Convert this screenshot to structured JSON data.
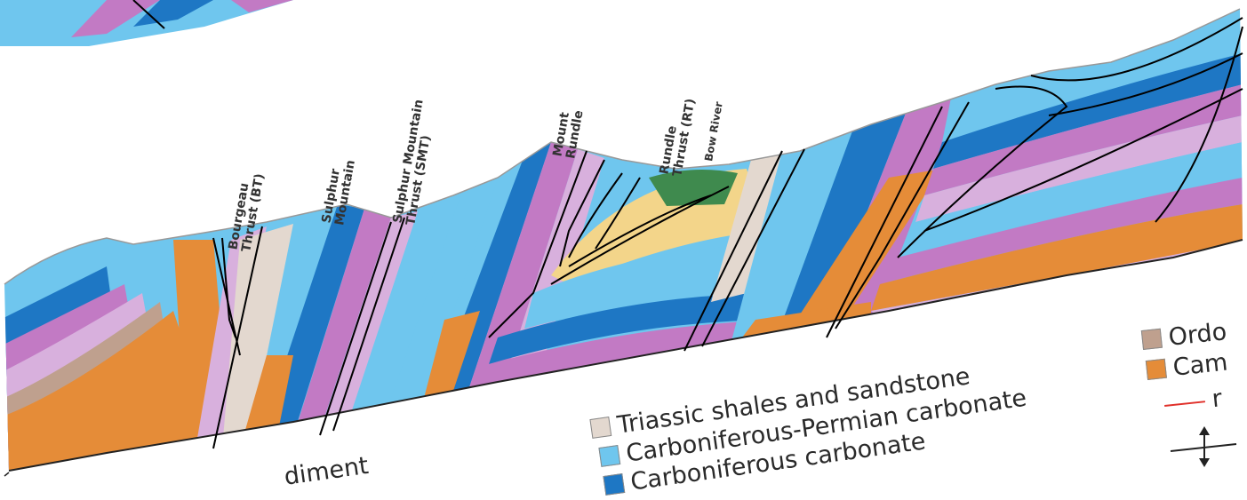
{
  "colors": {
    "light_blue": "#6fc6ee",
    "dark_blue": "#1e77c4",
    "purple": "#c27ac4",
    "lilac": "#d8b0dd",
    "orange": "#e58c38",
    "tan": "#e3d8cf",
    "yellow": "#f3d58a",
    "green": "#3f8a4e",
    "ordovician": "#bfa08e",
    "fault_line": "#000000",
    "legend_red": "#e0302a"
  },
  "peak_labels": [
    {
      "key": "bt",
      "lines": [
        "Bourgeau",
        "Thrust (BT)"
      ]
    },
    {
      "key": "sm",
      "lines": [
        "Sulphur",
        "Mountain"
      ]
    },
    {
      "key": "smt",
      "lines": [
        "Sulphur Mountain",
        "Thrust (SMT)"
      ]
    },
    {
      "key": "mr",
      "lines": [
        "Mount",
        "Rundle"
      ]
    },
    {
      "key": "rt",
      "lines": [
        "Rundle",
        "Thrust (RT)"
      ]
    },
    {
      "key": "br",
      "lines": [
        "Bow River"
      ]
    }
  ],
  "legend": {
    "left_items": [
      {
        "label": "Triassic shales and sandstone",
        "swatch": "#e3d8cf"
      },
      {
        "label": "Carboniferous-Permian carbonate",
        "swatch": "#6fc6ee"
      },
      {
        "label": "Carboniferous carbonate",
        "swatch": "#1e77c4"
      }
    ],
    "right_items": [
      {
        "label": "Ordo",
        "swatch": "#bfa08e"
      },
      {
        "label": "Cam",
        "swatch": "#e58c38"
      },
      {
        "label": "r",
        "swatch": "line"
      }
    ],
    "partial_left": "diment"
  }
}
